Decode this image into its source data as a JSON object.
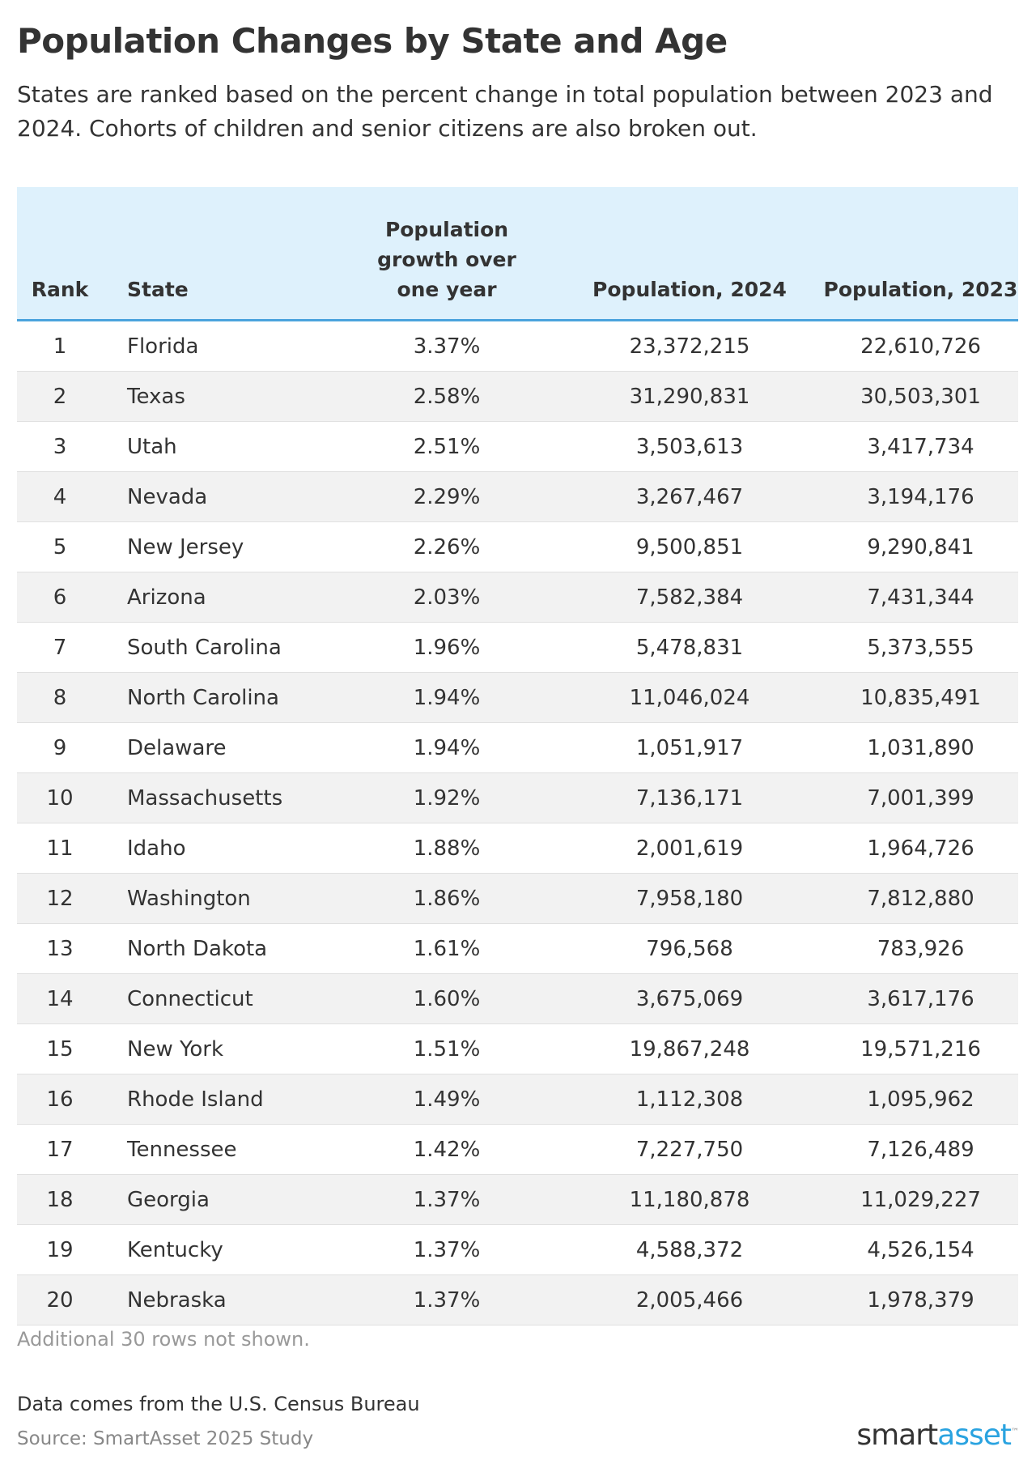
{
  "header": {
    "title": "Population Changes by State and Age",
    "subtitle": "States are ranked based on the percent change in total population between 2023 and 2024. Cohorts of children and senior citizens are also broken out."
  },
  "table": {
    "columns": [
      "Rank",
      "State",
      "Population growth over one year",
      "Population, 2024",
      "Population, 2023"
    ],
    "rows": [
      [
        "1",
        "Florida",
        "3.37%",
        "23,372,215",
        "22,610,726"
      ],
      [
        "2",
        "Texas",
        "2.58%",
        "31,290,831",
        "30,503,301"
      ],
      [
        "3",
        "Utah",
        "2.51%",
        "3,503,613",
        "3,417,734"
      ],
      [
        "4",
        "Nevada",
        "2.29%",
        "3,267,467",
        "3,194,176"
      ],
      [
        "5",
        "New Jersey",
        "2.26%",
        "9,500,851",
        "9,290,841"
      ],
      [
        "6",
        "Arizona",
        "2.03%",
        "7,582,384",
        "7,431,344"
      ],
      [
        "7",
        "South Carolina",
        "1.96%",
        "5,478,831",
        "5,373,555"
      ],
      [
        "8",
        "North Carolina",
        "1.94%",
        "11,046,024",
        "10,835,491"
      ],
      [
        "9",
        "Delaware",
        "1.94%",
        "1,051,917",
        "1,031,890"
      ],
      [
        "10",
        "Massachusetts",
        "1.92%",
        "7,136,171",
        "7,001,399"
      ],
      [
        "11",
        "Idaho",
        "1.88%",
        "2,001,619",
        "1,964,726"
      ],
      [
        "12",
        "Washington",
        "1.86%",
        "7,958,180",
        "7,812,880"
      ],
      [
        "13",
        "North Dakota",
        "1.61%",
        "796,568",
        "783,926"
      ],
      [
        "14",
        "Connecticut",
        "1.60%",
        "3,675,069",
        "3,617,176"
      ],
      [
        "15",
        "New York",
        "1.51%",
        "19,867,248",
        "19,571,216"
      ],
      [
        "16",
        "Rhode Island",
        "1.49%",
        "1,112,308",
        "1,095,962"
      ],
      [
        "17",
        "Tennessee",
        "1.42%",
        "7,227,750",
        "7,126,489"
      ],
      [
        "18",
        "Georgia",
        "1.37%",
        "11,180,878",
        "11,029,227"
      ],
      [
        "19",
        "Kentucky",
        "1.37%",
        "4,588,372",
        "4,526,154"
      ],
      [
        "20",
        "Nebraska",
        "1.37%",
        "2,005,466",
        "1,978,379"
      ]
    ]
  },
  "footer": {
    "note": "Additional 30 rows not shown.",
    "data_note": "Data comes from the U.S. Census Bureau",
    "source": "Source: SmartAsset 2025 Study",
    "logo": [
      "smart",
      "asset",
      "™"
    ]
  }
}
